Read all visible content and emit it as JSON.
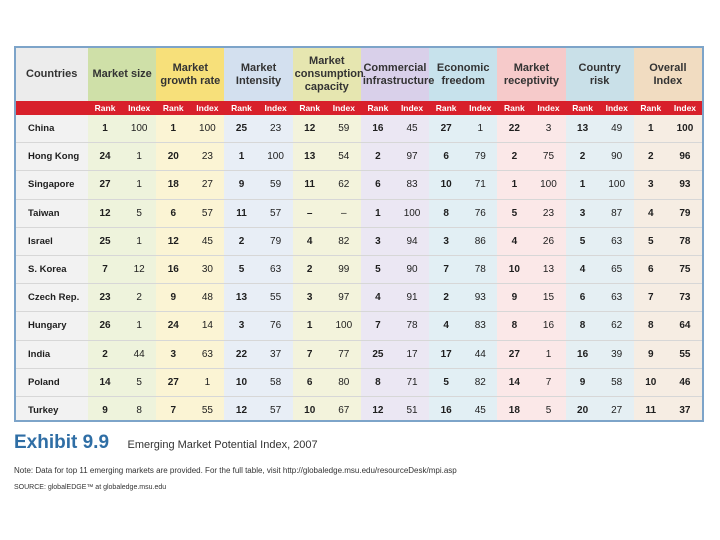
{
  "table": {
    "country_header": "Countries",
    "groups": [
      "Market size",
      "Market growth rate",
      "Market Intensity",
      "Market consumption capacity",
      "Commercial infrastructure",
      "Economic freedom",
      "Market receptivity",
      "Country risk",
      "Overall Index"
    ],
    "sub_rank": "Rank",
    "sub_index": "Index",
    "rows": [
      {
        "country": "China",
        "cells": [
          "1",
          "100",
          "1",
          "100",
          "25",
          "23",
          "12",
          "59",
          "16",
          "45",
          "27",
          "1",
          "22",
          "3",
          "13",
          "49",
          "1",
          "100"
        ]
      },
      {
        "country": "Hong Kong",
        "cells": [
          "24",
          "1",
          "20",
          "23",
          "1",
          "100",
          "13",
          "54",
          "2",
          "97",
          "6",
          "79",
          "2",
          "75",
          "2",
          "90",
          "2",
          "96"
        ]
      },
      {
        "country": "Singapore",
        "cells": [
          "27",
          "1",
          "18",
          "27",
          "9",
          "59",
          "11",
          "62",
          "6",
          "83",
          "10",
          "71",
          "1",
          "100",
          "1",
          "100",
          "3",
          "93"
        ]
      },
      {
        "country": "Taiwan",
        "cells": [
          "12",
          "5",
          "6",
          "57",
          "11",
          "57",
          "–",
          "–",
          "1",
          "100",
          "8",
          "76",
          "5",
          "23",
          "3",
          "87",
          "4",
          "79"
        ]
      },
      {
        "country": "Israel",
        "cells": [
          "25",
          "1",
          "12",
          "45",
          "2",
          "79",
          "4",
          "82",
          "3",
          "94",
          "3",
          "86",
          "4",
          "26",
          "5",
          "63",
          "5",
          "78"
        ]
      },
      {
        "country": "S. Korea",
        "cells": [
          "7",
          "12",
          "16",
          "30",
          "5",
          "63",
          "2",
          "99",
          "5",
          "90",
          "7",
          "78",
          "10",
          "13",
          "4",
          "65",
          "6",
          "75"
        ]
      },
      {
        "country": "Czech Rep.",
        "cells": [
          "23",
          "2",
          "9",
          "48",
          "13",
          "55",
          "3",
          "97",
          "4",
          "91",
          "2",
          "93",
          "9",
          "15",
          "6",
          "63",
          "7",
          "73"
        ]
      },
      {
        "country": "Hungary",
        "cells": [
          "26",
          "1",
          "24",
          "14",
          "3",
          "76",
          "1",
          "100",
          "7",
          "78",
          "4",
          "83",
          "8",
          "16",
          "8",
          "62",
          "8",
          "64"
        ]
      },
      {
        "country": "India",
        "cells": [
          "2",
          "44",
          "3",
          "63",
          "22",
          "37",
          "7",
          "77",
          "25",
          "17",
          "17",
          "44",
          "27",
          "1",
          "16",
          "39",
          "9",
          "55"
        ]
      },
      {
        "country": "Poland",
        "cells": [
          "14",
          "5",
          "27",
          "1",
          "10",
          "58",
          "6",
          "80",
          "8",
          "71",
          "5",
          "82",
          "14",
          "7",
          "9",
          "58",
          "10",
          "46"
        ]
      },
      {
        "country": "Turkey",
        "cells": [
          "9",
          "8",
          "7",
          "55",
          "12",
          "57",
          "10",
          "67",
          "12",
          "51",
          "16",
          "45",
          "18",
          "5",
          "20",
          "27",
          "11",
          "37"
        ]
      }
    ]
  },
  "caption": {
    "title": "Exhibit 9.9",
    "subtitle": "Emerging Market Potential Index, 2007",
    "note": "Note: Data for top 11 emerging markets are provided. For the full table, visit http://globaledge.msu.edu/resourceDesk/mpi.asp",
    "source": "SOURCE: globalEDGE™ at globaledge.msu.edu"
  }
}
